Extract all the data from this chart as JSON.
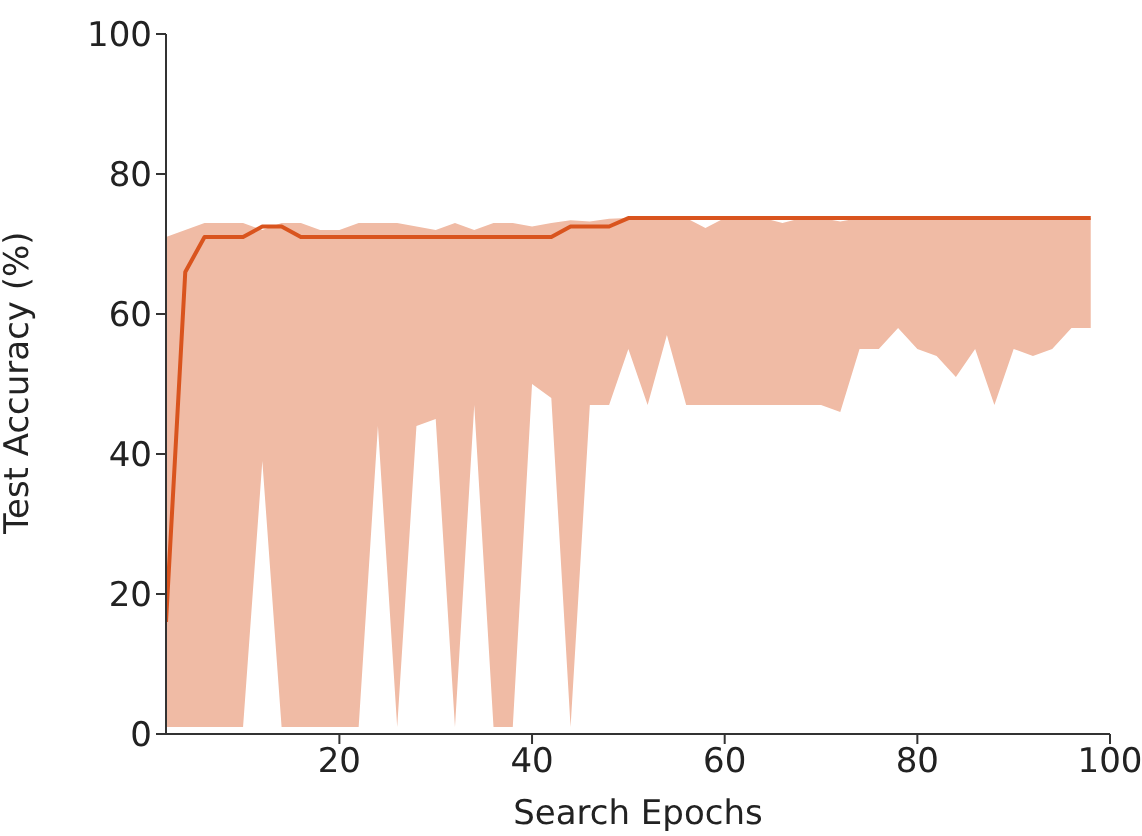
{
  "chart_data": {
    "type": "line",
    "xlabel": "Search Epochs",
    "ylabel": "Test Accuracy (%)",
    "x": [
      2,
      4,
      6,
      8,
      10,
      12,
      14,
      16,
      18,
      20,
      22,
      24,
      26,
      28,
      30,
      32,
      34,
      36,
      38,
      40,
      42,
      44,
      46,
      48,
      50,
      52,
      54,
      56,
      58,
      60,
      62,
      64,
      66,
      68,
      70,
      72,
      74,
      76,
      78,
      80,
      82,
      84,
      86,
      88,
      90,
      92,
      94,
      96,
      98
    ],
    "series": [
      {
        "color": "#d9541e",
        "values": [
          16,
          66,
          71,
          71,
          71,
          72.5,
          72.5,
          71,
          71,
          71,
          71,
          71,
          71,
          71,
          71,
          71,
          71,
          71,
          71,
          71,
          71,
          72.5,
          72.5,
          72.5,
          73.7,
          73.7,
          73.7,
          73.7,
          73.7,
          73.7,
          73.7,
          73.7,
          73.7,
          73.7,
          73.7,
          73.7,
          73.7,
          73.7,
          73.7,
          73.7,
          73.7,
          73.7,
          73.7,
          73.7,
          73.7,
          73.7,
          73.7,
          73.7,
          73.7
        ],
        "lower": [
          1,
          1,
          1,
          1,
          1,
          39,
          1,
          1,
          1,
          1,
          1,
          44,
          1,
          44,
          45,
          1,
          47,
          1,
          1,
          50,
          48,
          1,
          47,
          47,
          55,
          47,
          57,
          47,
          47,
          47,
          47,
          47,
          47,
          47,
          47,
          46,
          55,
          55,
          58,
          55,
          54,
          51,
          55,
          47,
          55,
          54,
          55,
          58,
          58
        ],
        "upper": [
          71,
          72,
          73,
          73,
          73,
          72,
          73,
          73,
          72,
          72,
          73,
          73,
          73,
          72.5,
          72,
          73,
          72,
          73,
          73,
          72.5,
          73,
          73.4,
          73.2,
          73.6,
          73.7,
          73.7,
          73.7,
          73.7,
          72.3,
          73.7,
          73.7,
          73.7,
          73,
          73.7,
          73.7,
          73.2,
          73.7,
          73.7,
          73.7,
          73.7,
          73.7,
          73.7,
          73.7,
          73.7,
          73.7,
          73.7,
          73.7,
          73.7,
          73.7
        ]
      }
    ],
    "xlim": [
      2,
      100
    ],
    "xticks": [
      20,
      40,
      60,
      80,
      100
    ],
    "ylim": [
      0,
      100
    ],
    "yticks": [
      0,
      20,
      40,
      60,
      80,
      100
    ],
    "grid": false,
    "legend": false,
    "marker": "none",
    "line_style": "solid"
  }
}
